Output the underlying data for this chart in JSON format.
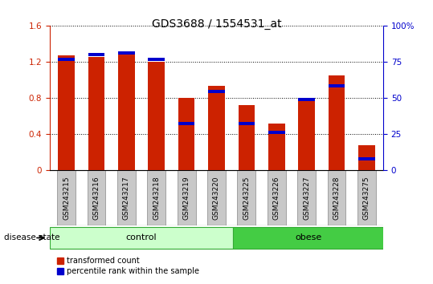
{
  "title": "GDS3688 / 1554531_at",
  "samples": [
    "GSM243215",
    "GSM243216",
    "GSM243217",
    "GSM243218",
    "GSM243219",
    "GSM243220",
    "GSM243225",
    "GSM243226",
    "GSM243227",
    "GSM243228",
    "GSM243275"
  ],
  "red_values": [
    1.27,
    1.25,
    1.3,
    1.2,
    0.8,
    0.93,
    0.72,
    0.52,
    0.78,
    1.05,
    0.28
  ],
  "blue_values": [
    1.23,
    1.28,
    1.3,
    1.23,
    0.52,
    0.87,
    0.52,
    0.42,
    0.78,
    0.93,
    0.13
  ],
  "control_count": 6,
  "obese_count": 5,
  "ylim_left": [
    0,
    1.6
  ],
  "ylim_right": [
    0,
    100
  ],
  "yticks_left": [
    0,
    0.4,
    0.8,
    1.2,
    1.6
  ],
  "ytick_labels_left": [
    "0",
    "0.4",
    "0.8",
    "1.2",
    "1.6"
  ],
  "yticks_right": [
    0,
    25,
    50,
    75,
    100
  ],
  "ytick_labels_right": [
    "0",
    "25",
    "50",
    "75",
    "100%"
  ],
  "bar_color": "#cc2200",
  "dot_color": "#0000cc",
  "control_color": "#ccffcc",
  "obese_color": "#44cc44",
  "tick_bg_color": "#c8c8c8",
  "bar_width": 0.55,
  "legend_red_label": "transformed count",
  "legend_blue_label": "percentile rank within the sample",
  "disease_state_label": "disease state",
  "control_label": "control",
  "obese_label": "obese",
  "title_fontsize": 10,
  "tick_fontsize": 7.5,
  "label_fontsize": 6.5,
  "legend_fontsize": 7,
  "disease_fontsize": 8,
  "blue_bar_height": 0.035
}
